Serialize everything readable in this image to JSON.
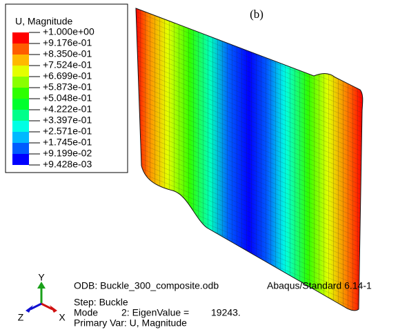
{
  "label": "(b)",
  "legend": {
    "title": "U, Magnitude",
    "labels": [
      "+1.000e+00",
      "+9.176e-01",
      "+8.350e-01",
      "+7.524e-01",
      "+6.699e-01",
      "+5.873e-01",
      "+5.048e-01",
      "+4.222e-01",
      "+3.397e-01",
      "+2.571e-01",
      "+1.745e-01",
      "+9.199e-02",
      "+9.428e-03"
    ],
    "colors": [
      "#ff0000",
      "#ff5c00",
      "#ffb900",
      "#e4ff00",
      "#8aff00",
      "#2eff00",
      "#00ff2e",
      "#00ff8a",
      "#00ffe4",
      "#00b9ff",
      "#005cff",
      "#0000ff"
    ]
  },
  "triad": {
    "y": "Y",
    "z": "Z",
    "x": "X"
  },
  "info": {
    "odb": "ODB: Buckle_300_composite.odb",
    "solver": "Abaqus/Standard 6.14-1",
    "step": "Step: Buckle",
    "mode": "Mode",
    "eigen": "2: EigenValue =",
    "eigenvalue": "19243.",
    "primary": "Primary Var: U, Magnitude"
  }
}
